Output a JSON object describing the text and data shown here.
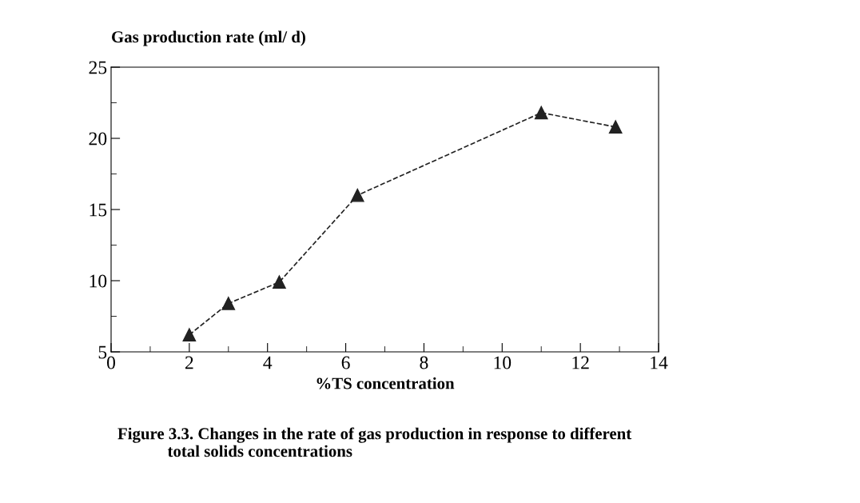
{
  "chart_data": {
    "type": "line",
    "ylabel": "Gas production rate (ml/ d)",
    "xlabel": "%TS concentration",
    "annotations": [
      "Figure 3.3. Changes in the rate of gas production in response to different\n            total solids concentrations"
    ],
    "x": [
      2,
      3,
      4.3,
      6.3,
      11,
      12.9
    ],
    "series": [
      {
        "color": "#222222",
        "values": [
          6.2,
          8.4,
          9.9,
          16,
          21.8,
          20.8
        ]
      }
    ],
    "xlim": [
      0,
      14
    ],
    "xticks": [
      0,
      2,
      4,
      6,
      8,
      10,
      12,
      14
    ],
    "ylim": [
      5,
      25
    ],
    "yticks": [
      5,
      10,
      15,
      20,
      25
    ],
    "marker": "triangle",
    "line_style": "dashed",
    "grid": false,
    "legend": false
  }
}
